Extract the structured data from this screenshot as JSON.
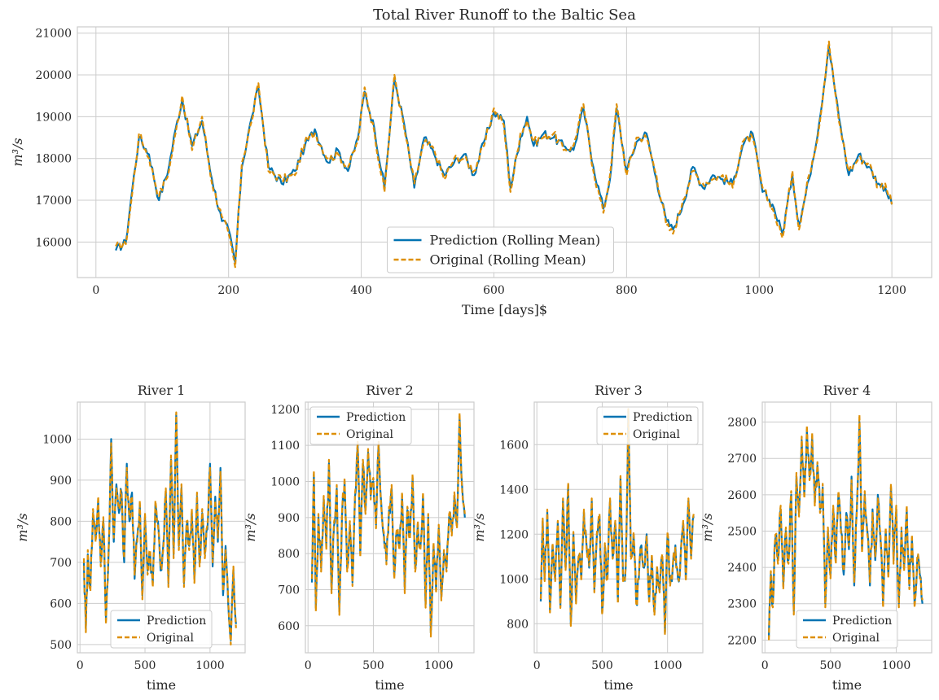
{
  "colors": {
    "prediction": "#0173b2",
    "original": "#de8f05",
    "grid": "#cccccc"
  },
  "chart_data": [
    {
      "type": "line",
      "title": "Total River Runoff to the Baltic Sea",
      "xlabel": "Time [days]$",
      "ylabel": "m³/s",
      "xlim": [
        -28,
        1260
      ],
      "ylim": [
        15150,
        21150
      ],
      "xticks": [
        0,
        200,
        400,
        600,
        800,
        1000,
        1200
      ],
      "yticks": [
        16000,
        17000,
        18000,
        19000,
        20000,
        21000
      ],
      "legend_position": "lower-center",
      "series": [
        {
          "name": "Prediction (Rolling Mean)",
          "style": "solid"
        },
        {
          "name": "Original (Rolling Mean)",
          "style": "dashed"
        }
      ],
      "x": [
        30,
        45,
        55,
        65,
        80,
        95,
        110,
        120,
        130,
        145,
        160,
        175,
        190,
        200,
        210,
        220,
        235,
        245,
        260,
        280,
        300,
        315,
        330,
        350,
        365,
        380,
        395,
        405,
        420,
        435,
        450,
        465,
        480,
        495,
        510,
        525,
        540,
        555,
        570,
        585,
        600,
        615,
        625,
        640,
        650,
        660,
        675,
        690,
        705,
        720,
        735,
        750,
        765,
        775,
        785,
        800,
        815,
        830,
        845,
        860,
        870,
        885,
        900,
        915,
        930,
        945,
        960,
        975,
        990,
        1005,
        1020,
        1035,
        1050,
        1060,
        1075,
        1090,
        1105,
        1120,
        1135,
        1150,
        1165,
        1180,
        1190,
        1200
      ],
      "values": [
        15800,
        16000,
        17300,
        18500,
        18100,
        17000,
        17800,
        18700,
        19400,
        18300,
        18900,
        17500,
        16500,
        16300,
        15500,
        17800,
        19000,
        19700,
        17800,
        17400,
        17700,
        18300,
        18700,
        17900,
        18200,
        17700,
        18500,
        19600,
        18700,
        17300,
        19900,
        18800,
        17300,
        18500,
        18100,
        17600,
        17900,
        18100,
        17600,
        18400,
        19100,
        18900,
        17300,
        18500,
        19000,
        18300,
        18600,
        18500,
        18300,
        18200,
        19200,
        17800,
        16800,
        17500,
        19200,
        17700,
        18400,
        18600,
        17500,
        16500,
        16300,
        16900,
        17800,
        17300,
        17600,
        17500,
        17400,
        18300,
        18600,
        17200,
        16900,
        16200,
        17600,
        16400,
        17500,
        18800,
        20700,
        19000,
        17600,
        18100,
        17800,
        17400,
        17300,
        16900
      ],
      "values_original": [
        15900,
        15950,
        17200,
        18600,
        18000,
        17100,
        17700,
        18600,
        19500,
        18200,
        19000,
        17400,
        16600,
        16200,
        15400,
        17900,
        18900,
        19800,
        17700,
        17500,
        17600,
        18400,
        18600,
        18000,
        18100,
        17800,
        18400,
        19700,
        18600,
        17200,
        20000,
        18700,
        17400,
        18400,
        18200,
        17500,
        18000,
        18000,
        17700,
        18300,
        19200,
        18800,
        17200,
        18600,
        18900,
        18400,
        18500,
        18600,
        18200,
        18300,
        19300,
        17700,
        16700,
        17600,
        19300,
        17600,
        18500,
        18500,
        17600,
        16400,
        16200,
        17000,
        17700,
        17400,
        17500,
        17600,
        17300,
        18400,
        18500,
        17300,
        16800,
        16100,
        17700,
        16300,
        17600,
        18700,
        20800,
        18900,
        17700,
        18000,
        17900,
        17300,
        17400,
        16900
      ]
    },
    {
      "type": "line",
      "title": "River 1",
      "xlabel": "time",
      "ylabel": "m³/s",
      "xlim": [
        -20,
        1270
      ],
      "ylim": [
        480,
        1090
      ],
      "xticks": [
        0,
        500,
        1000
      ],
      "yticks": [
        500,
        600,
        700,
        800,
        900,
        1000
      ],
      "legend_position": "lower-center",
      "series": [
        {
          "name": "Prediction",
          "style": "solid"
        },
        {
          "name": "Original",
          "style": "dashed"
        }
      ],
      "x": [
        30,
        45,
        60,
        80,
        100,
        120,
        140,
        160,
        180,
        200,
        220,
        240,
        260,
        280,
        300,
        320,
        340,
        360,
        380,
        400,
        420,
        440,
        460,
        480,
        500,
        520,
        540,
        560,
        580,
        600,
        620,
        640,
        660,
        680,
        700,
        720,
        740,
        760,
        780,
        800,
        820,
        840,
        860,
        880,
        900,
        920,
        940,
        960,
        980,
        1000,
        1020,
        1040,
        1060,
        1080,
        1100,
        1120,
        1140,
        1160,
        1180,
        1200
      ],
      "values": [
        700,
        540,
        720,
        640,
        820,
        760,
        850,
        700,
        800,
        560,
        720,
        1000,
        750,
        890,
        820,
        870,
        700,
        940,
        800,
        870,
        660,
        760,
        840,
        620,
        810,
        680,
        720,
        650,
        840,
        800,
        680,
        740,
        870,
        650,
        950,
        720,
        1060,
        740,
        880,
        650,
        790,
        740,
        820,
        660,
        860,
        700,
        820,
        720,
        780,
        940,
        690,
        860,
        750,
        930,
        620,
        740,
        600,
        510,
        680,
        550
      ],
      "values_original": [
        710,
        530,
        730,
        630,
        830,
        750,
        860,
        690,
        810,
        550,
        730,
        990,
        760,
        880,
        830,
        860,
        710,
        930,
        810,
        860,
        670,
        750,
        850,
        610,
        820,
        670,
        730,
        640,
        850,
        790,
        690,
        730,
        880,
        640,
        960,
        710,
        1065,
        730,
        890,
        640,
        800,
        730,
        830,
        650,
        870,
        690,
        830,
        710,
        790,
        930,
        700,
        850,
        760,
        920,
        630,
        730,
        610,
        500,
        690,
        540
      ]
    },
    {
      "type": "line",
      "title": "River 2",
      "xlabel": "time",
      "ylabel": "m³/s",
      "xlim": [
        -20,
        1270
      ],
      "ylim": [
        525,
        1220
      ],
      "xticks": [
        0,
        500,
        1000
      ],
      "yticks": [
        600,
        700,
        800,
        900,
        1000,
        1100,
        1200
      ],
      "legend_position": "upper-left",
      "series": [
        {
          "name": "Prediction",
          "style": "solid"
        },
        {
          "name": "Original",
          "style": "dashed"
        }
      ],
      "x": [
        30,
        45,
        60,
        80,
        100,
        120,
        140,
        160,
        180,
        200,
        220,
        240,
        260,
        280,
        300,
        320,
        340,
        360,
        380,
        400,
        420,
        440,
        460,
        480,
        500,
        520,
        540,
        560,
        580,
        600,
        620,
        640,
        660,
        680,
        700,
        720,
        740,
        760,
        780,
        800,
        820,
        840,
        860,
        880,
        900,
        920,
        940,
        960,
        980,
        1000,
        1020,
        1040,
        1060,
        1080,
        1100,
        1120,
        1140,
        1160,
        1180,
        1200
      ],
      "values": [
        720,
        1020,
        650,
        900,
        760,
        950,
        820,
        1050,
        700,
        880,
        980,
        640,
        900,
        1000,
        760,
        880,
        720,
        960,
        1100,
        800,
        1050,
        920,
        1080,
        960,
        1000,
        880,
        1100,
        940,
        850,
        780,
        920,
        980,
        740,
        860,
        820,
        960,
        700,
        920,
        850,
        1010,
        760,
        880,
        820,
        960,
        660,
        900,
        580,
        820,
        700,
        870,
        680,
        800,
        760,
        900,
        860,
        960,
        880,
        1180,
        980,
        900
      ],
      "values_original": [
        730,
        1030,
        640,
        910,
        750,
        960,
        810,
        1060,
        690,
        890,
        990,
        630,
        910,
        1010,
        750,
        890,
        710,
        970,
        1110,
        790,
        1060,
        910,
        1090,
        950,
        1010,
        870,
        1110,
        930,
        860,
        770,
        930,
        990,
        730,
        870,
        810,
        970,
        690,
        930,
        840,
        1020,
        750,
        890,
        810,
        970,
        650,
        910,
        570,
        830,
        690,
        880,
        670,
        810,
        750,
        910,
        850,
        970,
        870,
        1190,
        970,
        910
      ]
    },
    {
      "type": "line",
      "title": "River 3",
      "xlabel": "time",
      "ylabel": "m³/s",
      "xlim": [
        -20,
        1270
      ],
      "ylim": [
        670,
        1790
      ],
      "xticks": [
        0,
        500,
        1000
      ],
      "yticks": [
        800,
        1000,
        1200,
        1400,
        1600
      ],
      "legend_position": "upper-right",
      "series": [
        {
          "name": "Prediction",
          "style": "solid"
        },
        {
          "name": "Original",
          "style": "dashed"
        }
      ],
      "x": [
        30,
        45,
        60,
        80,
        100,
        120,
        140,
        160,
        180,
        200,
        220,
        240,
        260,
        280,
        300,
        320,
        340,
        360,
        380,
        400,
        420,
        440,
        460,
        480,
        500,
        520,
        540,
        560,
        580,
        600,
        620,
        640,
        660,
        680,
        700,
        720,
        740,
        760,
        780,
        800,
        820,
        840,
        860,
        880,
        900,
        920,
        940,
        960,
        980,
        1000,
        1020,
        1040,
        1060,
        1080,
        1100,
        1120,
        1140,
        1160,
        1180,
        1200
      ],
      "values": [
        900,
        1260,
        1000,
        1300,
        860,
        1150,
        1000,
        1250,
        880,
        1350,
        1050,
        1420,
        800,
        1200,
        900,
        1100,
        1000,
        1300,
        1150,
        1050,
        1350,
        950,
        1200,
        1280,
        850,
        1150,
        1000,
        1350,
        1100,
        1250,
        900,
        1450,
        1000,
        1050,
        1750,
        1100,
        1200,
        900,
        1000,
        1150,
        1050,
        1200,
        900,
        1100,
        850,
        1050,
        950,
        1100,
        760,
        1200,
        980,
        1050,
        1150,
        1000,
        1100,
        1250,
        1000,
        1350,
        1100,
        1280
      ],
      "values_original": [
        910,
        1270,
        990,
        1310,
        850,
        1160,
        990,
        1260,
        870,
        1360,
        1040,
        1430,
        790,
        1210,
        890,
        1110,
        990,
        1310,
        1140,
        1060,
        1360,
        940,
        1210,
        1290,
        840,
        1160,
        990,
        1360,
        1090,
        1260,
        890,
        1460,
        990,
        1060,
        1760,
        1090,
        1210,
        890,
        1010,
        1140,
        1060,
        1190,
        890,
        1110,
        840,
        1060,
        940,
        1110,
        750,
        1210,
        970,
        1060,
        1140,
        1010,
        1090,
        1260,
        990,
        1360,
        1090,
        1290
      ]
    },
    {
      "type": "line",
      "title": "River 4",
      "xlabel": "time",
      "ylabel": "m³/s",
      "xlim": [
        -20,
        1270
      ],
      "ylim": [
        2165,
        2855
      ],
      "xticks": [
        0,
        500,
        1000
      ],
      "yticks": [
        2200,
        2300,
        2400,
        2500,
        2600,
        2700,
        2800
      ],
      "legend_position": "lower-center",
      "series": [
        {
          "name": "Prediction",
          "style": "solid"
        },
        {
          "name": "Original",
          "style": "dashed"
        }
      ],
      "x": [
        30,
        45,
        60,
        80,
        100,
        120,
        140,
        160,
        180,
        200,
        220,
        240,
        260,
        280,
        300,
        320,
        340,
        360,
        380,
        400,
        420,
        440,
        460,
        480,
        500,
        520,
        540,
        560,
        580,
        600,
        620,
        640,
        660,
        680,
        700,
        720,
        740,
        760,
        780,
        800,
        820,
        840,
        860,
        880,
        900,
        920,
        940,
        960,
        980,
        1000,
        1020,
        1040,
        1060,
        1080,
        1100,
        1120,
        1140,
        1160,
        1180,
        1200
      ],
      "values": [
        2210,
        2380,
        2300,
        2480,
        2420,
        2560,
        2350,
        2500,
        2420,
        2600,
        2280,
        2650,
        2550,
        2750,
        2600,
        2780,
        2650,
        2760,
        2580,
        2680,
        2560,
        2620,
        2300,
        2500,
        2380,
        2560,
        2420,
        2600,
        2500,
        2380,
        2550,
        2450,
        2650,
        2350,
        2560,
        2800,
        2450,
        2600,
        2500,
        2350,
        2560,
        2420,
        2600,
        2480,
        2300,
        2500,
        2380,
        2620,
        2420,
        2560,
        2300,
        2500,
        2400,
        2560,
        2350,
        2480,
        2300,
        2420,
        2380,
        2300
      ],
      "values_original": [
        2200,
        2390,
        2290,
        2490,
        2410,
        2570,
        2340,
        2510,
        2410,
        2610,
        2270,
        2660,
        2540,
        2760,
        2590,
        2790,
        2640,
        2770,
        2570,
        2690,
        2550,
        2630,
        2290,
        2510,
        2370,
        2570,
        2410,
        2610,
        2490,
        2390,
        2540,
        2460,
        2640,
        2360,
        2550,
        2820,
        2440,
        2610,
        2490,
        2360,
        2550,
        2430,
        2590,
        2490,
        2290,
        2510,
        2370,
        2630,
        2410,
        2570,
        2290,
        2510,
        2390,
        2570,
        2340,
        2490,
        2290,
        2430,
        2370,
        2310
      ]
    }
  ]
}
